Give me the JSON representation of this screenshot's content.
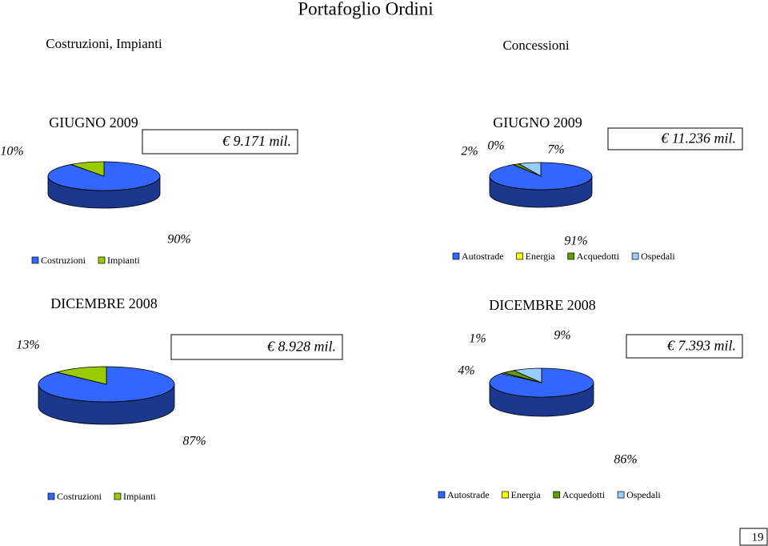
{
  "title": "Portafoglio Ordini",
  "sections": [
    "Costruzioni, Impianti",
    "Concessioni"
  ],
  "page_number": "19",
  "chart_data": [
    {
      "type": "pie",
      "title": "GIUGNO 2009",
      "annotation": "€ 9.171 mil.",
      "categories": [
        "Costruzioni",
        "Impianti"
      ],
      "values": [
        90,
        10
      ],
      "value_labels": [
        "90%",
        "10%"
      ],
      "colors": [
        "#3366ff",
        "#99cc00"
      ],
      "legend": "bottom"
    },
    {
      "type": "pie",
      "title": "GIUGNO 2009",
      "annotation": "€ 11.236 mil.",
      "categories": [
        "Autostrade",
        "Energia",
        "Acquedotti",
        "Ospedali"
      ],
      "values": [
        91,
        0,
        2,
        7
      ],
      "value_labels": [
        "91%",
        "0%",
        "2%",
        "7%"
      ],
      "colors": [
        "#3366ff",
        "#ffff00",
        "#669900",
        "#99ccff"
      ],
      "legend": "bottom"
    },
    {
      "type": "pie",
      "title": "DICEMBRE 2008",
      "annotation": "€ 8.928 mil.",
      "categories": [
        "Costruzioni",
        "Impianti"
      ],
      "values": [
        87,
        13
      ],
      "value_labels": [
        "87%",
        "13%"
      ],
      "colors": [
        "#3366ff",
        "#99cc00"
      ],
      "legend": "bottom"
    },
    {
      "type": "pie",
      "title": "DICEMBRE 2008",
      "annotation": "€ 7.393 mil.",
      "categories": [
        "Autostrade",
        "Energia",
        "Acquedotti",
        "Ospedali"
      ],
      "values": [
        86,
        1,
        4,
        9
      ],
      "value_labels": [
        "86%",
        "1%",
        "4%",
        "9%"
      ],
      "colors": [
        "#3366ff",
        "#ffff00",
        "#669900",
        "#99ccff"
      ],
      "legend": "bottom"
    }
  ]
}
